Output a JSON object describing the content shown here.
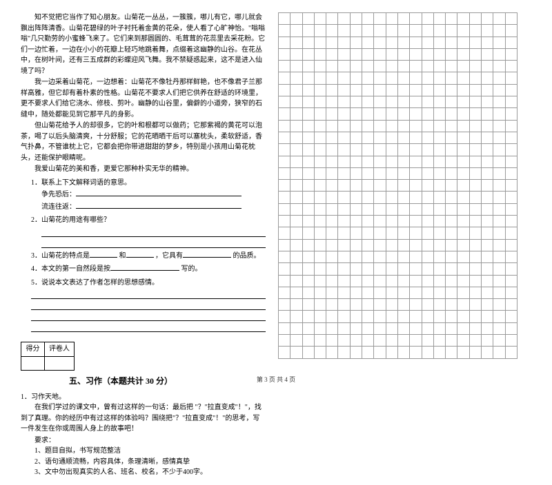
{
  "passage": {
    "p1": "知不觉把它当作了知心朋友。山菊花一丛丛，一簇簇，哪儿有它，哪儿就会飘出阵阵清香。山菊花碧绿的叶子衬托着金黄的花朵，使人看了心旷神怡。\"嗡嗡嗡\"几只勤劳的小蜜蜂飞来了。它们来到那圆圆的、毛茸茸的花蕊里去采花粉。它们一边忙着，一边在小小的花瓣上轻巧地跳着舞，点缀着这幽静的山谷。在花丛中，在树叶间，还有三五成群的彩蝶迎风飞舞。我不禁疑惑起来，这不是进入仙境了吗？",
    "p2": "我一边采着山菊花，一边想着：山菊花不像牡丹那样鲜艳，也不像君子兰那样高雅，但它却有着朴素的性格。山菊花不要求人们把它供养在舒适的环境里，更不要求人们给它浇水、修枝、剪叶。幽静的山谷里，偏僻的小道旁，狭窄的石缝中，随处都能见到它那平凡的身影。",
    "p3": "但山菊花给予人的却很多，它的叶和根都可以做药；它那紫褐的黄花可以泡茶，喝了以后头脑清爽，十分舒服；它的花晒晒干后可以塞枕头，柔软舒适，香气扑鼻，不管谁枕上它，它都会把你带进甜甜的梦乡，特别是小孩用山菊花枕头，还能保护眼睛呢。",
    "p4": "我爱山菊花的美和香，更爱它那种朴实无华的精神。"
  },
  "questions": {
    "q1": "1．联系上下文解释词语的意思。",
    "q1a": "争先恐后：",
    "q1b": "流连往返：",
    "q2": "2．山菊花的用途有哪些？",
    "q3a": "3．山菊花的特点是",
    "q3b": "和",
    "q3c": "，它具有",
    "q3d": "的品质。",
    "q4a": "4．本文的第一自然段是按",
    "q4b": "写的。",
    "q5": "5．说说本文表达了作者怎样的思想感情。"
  },
  "score": {
    "h1": "得分",
    "h2": "评卷人"
  },
  "section": "五、习作（本题共计 30 分）",
  "essay": {
    "t": "1．习作天地。",
    "body": "在我们学过的课文中，曾有过这样的一句话：最后把 \"？\"拉直变成\"！\"，找到了真理。你的经历中有过这样的体验吗？围绕把\"？\"拉直变成\"！\"的思考，写一件发生在你或周围人身上的故事吧！",
    "req": "要求：",
    "r1": "1、题目自拟，书写规范整洁",
    "r2": "2、语句通顺流畅，内容具体，条理清晰，感情真挚",
    "r3": "3、文中勿出现真实的人名、班名、校名，不少于400字。"
  },
  "footer": "第 3 页  共 4 页",
  "grid": {
    "cols": 20,
    "rows": 29
  }
}
